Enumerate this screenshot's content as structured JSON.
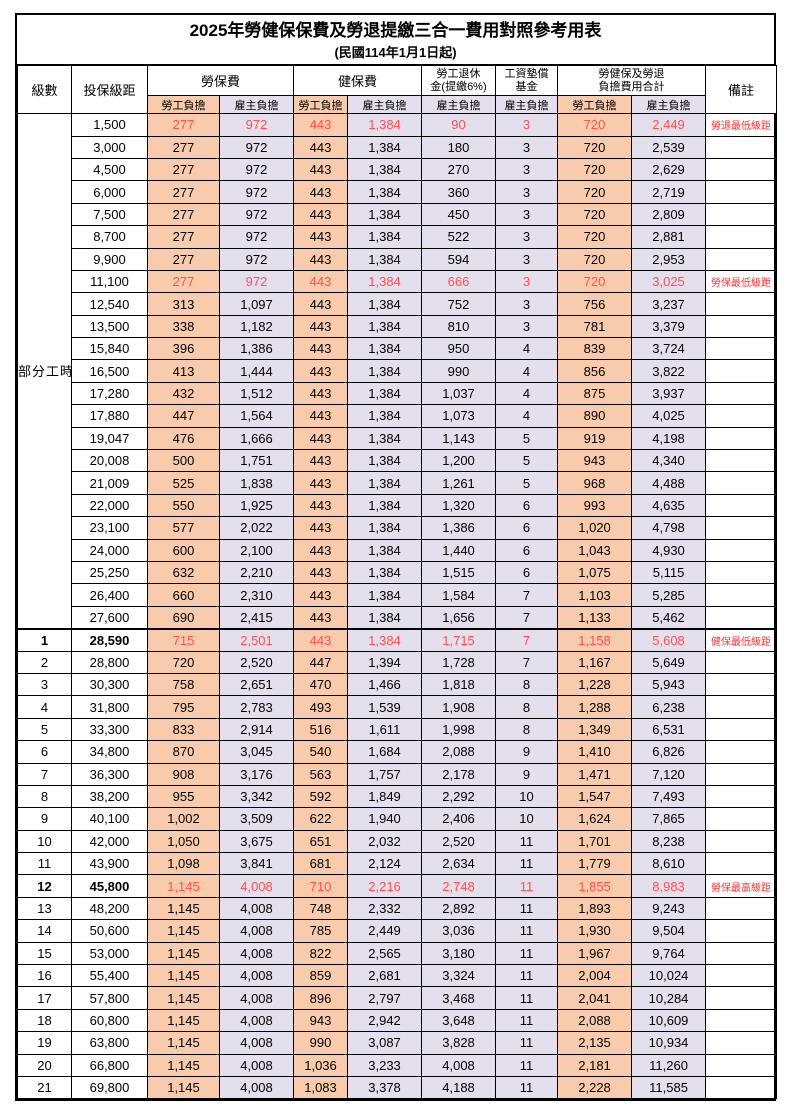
{
  "title": "2025年勞健保保費及勞退提繳三合一費用對照參考用表",
  "subtitle": "(民國114年1月1日起)",
  "header": {
    "level": "級數",
    "bracket": "投保級距",
    "labor_insurance": "勞保費",
    "health_insurance": "健保費",
    "pension_line1": "勞工退休",
    "pension_line2": "金(提繳6%)",
    "wage_fund_line1": "工資墊償",
    "wage_fund_line2": "基金",
    "total_line1": "勞健保及勞退",
    "total_line2": "負擔費用合計",
    "remark": "備註",
    "employee": "勞工負擔",
    "employer": "雇主負擔"
  },
  "colors": {
    "employee_bg": "#F8CBAD",
    "employer_bg": "#E4DFEC",
    "highlight": "#FF5050",
    "remark": "#FF3333"
  },
  "group_label": "部分工時",
  "group_span": 23,
  "rows": [
    {
      "level": "",
      "bracket": "1,500",
      "li_emp": "277",
      "li_er": "972",
      "hi_emp": "443",
      "hi_er": "1,384",
      "pension": "90",
      "wage": "3",
      "tot_emp": "720",
      "tot_er": "2,449",
      "remark": "勞退最低級距",
      "highlight": true
    },
    {
      "level": "",
      "bracket": "3,000",
      "li_emp": "277",
      "li_er": "972",
      "hi_emp": "443",
      "hi_er": "1,384",
      "pension": "180",
      "wage": "3",
      "tot_emp": "720",
      "tot_er": "2,539",
      "remark": ""
    },
    {
      "level": "",
      "bracket": "4,500",
      "li_emp": "277",
      "li_er": "972",
      "hi_emp": "443",
      "hi_er": "1,384",
      "pension": "270",
      "wage": "3",
      "tot_emp": "720",
      "tot_er": "2,629",
      "remark": ""
    },
    {
      "level": "",
      "bracket": "6,000",
      "li_emp": "277",
      "li_er": "972",
      "hi_emp": "443",
      "hi_er": "1,384",
      "pension": "360",
      "wage": "3",
      "tot_emp": "720",
      "tot_er": "2,719",
      "remark": ""
    },
    {
      "level": "",
      "bracket": "7,500",
      "li_emp": "277",
      "li_er": "972",
      "hi_emp": "443",
      "hi_er": "1,384",
      "pension": "450",
      "wage": "3",
      "tot_emp": "720",
      "tot_er": "2,809",
      "remark": ""
    },
    {
      "level": "",
      "bracket": "8,700",
      "li_emp": "277",
      "li_er": "972",
      "hi_emp": "443",
      "hi_er": "1,384",
      "pension": "522",
      "wage": "3",
      "tot_emp": "720",
      "tot_er": "2,881",
      "remark": ""
    },
    {
      "level": "",
      "bracket": "9,900",
      "li_emp": "277",
      "li_er": "972",
      "hi_emp": "443",
      "hi_er": "1,384",
      "pension": "594",
      "wage": "3",
      "tot_emp": "720",
      "tot_er": "2,953",
      "remark": ""
    },
    {
      "level": "",
      "bracket": "11,100",
      "li_emp": "277",
      "li_er": "972",
      "hi_emp": "443",
      "hi_er": "1,384",
      "pension": "666",
      "wage": "3",
      "tot_emp": "720",
      "tot_er": "3,025",
      "remark": "勞保最低級距",
      "highlight": true
    },
    {
      "level": "",
      "bracket": "12,540",
      "li_emp": "313",
      "li_er": "1,097",
      "hi_emp": "443",
      "hi_er": "1,384",
      "pension": "752",
      "wage": "3",
      "tot_emp": "756",
      "tot_er": "3,237",
      "remark": ""
    },
    {
      "level": "",
      "bracket": "13,500",
      "li_emp": "338",
      "li_er": "1,182",
      "hi_emp": "443",
      "hi_er": "1,384",
      "pension": "810",
      "wage": "3",
      "tot_emp": "781",
      "tot_er": "3,379",
      "remark": ""
    },
    {
      "level": "",
      "bracket": "15,840",
      "li_emp": "396",
      "li_er": "1,386",
      "hi_emp": "443",
      "hi_er": "1,384",
      "pension": "950",
      "wage": "4",
      "tot_emp": "839",
      "tot_er": "3,724",
      "remark": ""
    },
    {
      "level": "",
      "bracket": "16,500",
      "li_emp": "413",
      "li_er": "1,444",
      "hi_emp": "443",
      "hi_er": "1,384",
      "pension": "990",
      "wage": "4",
      "tot_emp": "856",
      "tot_er": "3,822",
      "remark": ""
    },
    {
      "level": "",
      "bracket": "17,280",
      "li_emp": "432",
      "li_er": "1,512",
      "hi_emp": "443",
      "hi_er": "1,384",
      "pension": "1,037",
      "wage": "4",
      "tot_emp": "875",
      "tot_er": "3,937",
      "remark": ""
    },
    {
      "level": "",
      "bracket": "17,880",
      "li_emp": "447",
      "li_er": "1,564",
      "hi_emp": "443",
      "hi_er": "1,384",
      "pension": "1,073",
      "wage": "4",
      "tot_emp": "890",
      "tot_er": "4,025",
      "remark": ""
    },
    {
      "level": "",
      "bracket": "19,047",
      "li_emp": "476",
      "li_er": "1,666",
      "hi_emp": "443",
      "hi_er": "1,384",
      "pension": "1,143",
      "wage": "5",
      "tot_emp": "919",
      "tot_er": "4,198",
      "remark": ""
    },
    {
      "level": "",
      "bracket": "20,008",
      "li_emp": "500",
      "li_er": "1,751",
      "hi_emp": "443",
      "hi_er": "1,384",
      "pension": "1,200",
      "wage": "5",
      "tot_emp": "943",
      "tot_er": "4,340",
      "remark": ""
    },
    {
      "level": "",
      "bracket": "21,009",
      "li_emp": "525",
      "li_er": "1,838",
      "hi_emp": "443",
      "hi_er": "1,384",
      "pension": "1,261",
      "wage": "5",
      "tot_emp": "968",
      "tot_er": "4,488",
      "remark": ""
    },
    {
      "level": "",
      "bracket": "22,000",
      "li_emp": "550",
      "li_er": "1,925",
      "hi_emp": "443",
      "hi_er": "1,384",
      "pension": "1,320",
      "wage": "6",
      "tot_emp": "993",
      "tot_er": "4,635",
      "remark": ""
    },
    {
      "level": "",
      "bracket": "23,100",
      "li_emp": "577",
      "li_er": "2,022",
      "hi_emp": "443",
      "hi_er": "1,384",
      "pension": "1,386",
      "wage": "6",
      "tot_emp": "1,020",
      "tot_er": "4,798",
      "remark": ""
    },
    {
      "level": "",
      "bracket": "24,000",
      "li_emp": "600",
      "li_er": "2,100",
      "hi_emp": "443",
      "hi_er": "1,384",
      "pension": "1,440",
      "wage": "6",
      "tot_emp": "1,043",
      "tot_er": "4,930",
      "remark": ""
    },
    {
      "level": "",
      "bracket": "25,250",
      "li_emp": "632",
      "li_er": "2,210",
      "hi_emp": "443",
      "hi_er": "1,384",
      "pension": "1,515",
      "wage": "6",
      "tot_emp": "1,075",
      "tot_er": "5,115",
      "remark": ""
    },
    {
      "level": "",
      "bracket": "26,400",
      "li_emp": "660",
      "li_er": "2,310",
      "hi_emp": "443",
      "hi_er": "1,384",
      "pension": "1,584",
      "wage": "7",
      "tot_emp": "1,103",
      "tot_er": "5,285",
      "remark": ""
    },
    {
      "level": "",
      "bracket": "27,600",
      "li_emp": "690",
      "li_er": "2,415",
      "hi_emp": "443",
      "hi_er": "1,384",
      "pension": "1,656",
      "wage": "7",
      "tot_emp": "1,133",
      "tot_er": "5,462",
      "remark": ""
    },
    {
      "level": "1",
      "bracket": "28,590",
      "li_emp": "715",
      "li_er": "2,501",
      "hi_emp": "443",
      "hi_er": "1,384",
      "pension": "1,715",
      "wage": "7",
      "tot_emp": "1,158",
      "tot_er": "5,608",
      "remark": "健保最低級距",
      "highlight": true,
      "bold": true,
      "thick_top": true
    },
    {
      "level": "2",
      "bracket": "28,800",
      "li_emp": "720",
      "li_er": "2,520",
      "hi_emp": "447",
      "hi_er": "1,394",
      "pension": "1,728",
      "wage": "7",
      "tot_emp": "1,167",
      "tot_er": "5,649",
      "remark": ""
    },
    {
      "level": "3",
      "bracket": "30,300",
      "li_emp": "758",
      "li_er": "2,651",
      "hi_emp": "470",
      "hi_er": "1,466",
      "pension": "1,818",
      "wage": "8",
      "tot_emp": "1,228",
      "tot_er": "5,943",
      "remark": ""
    },
    {
      "level": "4",
      "bracket": "31,800",
      "li_emp": "795",
      "li_er": "2,783",
      "hi_emp": "493",
      "hi_er": "1,539",
      "pension": "1,908",
      "wage": "8",
      "tot_emp": "1,288",
      "tot_er": "6,238",
      "remark": ""
    },
    {
      "level": "5",
      "bracket": "33,300",
      "li_emp": "833",
      "li_er": "2,914",
      "hi_emp": "516",
      "hi_er": "1,611",
      "pension": "1,998",
      "wage": "8",
      "tot_emp": "1,349",
      "tot_er": "6,531",
      "remark": ""
    },
    {
      "level": "6",
      "bracket": "34,800",
      "li_emp": "870",
      "li_er": "3,045",
      "hi_emp": "540",
      "hi_er": "1,684",
      "pension": "2,088",
      "wage": "9",
      "tot_emp": "1,410",
      "tot_er": "6,826",
      "remark": ""
    },
    {
      "level": "7",
      "bracket": "36,300",
      "li_emp": "908",
      "li_er": "3,176",
      "hi_emp": "563",
      "hi_er": "1,757",
      "pension": "2,178",
      "wage": "9",
      "tot_emp": "1,471",
      "tot_er": "7,120",
      "remark": ""
    },
    {
      "level": "8",
      "bracket": "38,200",
      "li_emp": "955",
      "li_er": "3,342",
      "hi_emp": "592",
      "hi_er": "1,849",
      "pension": "2,292",
      "wage": "10",
      "tot_emp": "1,547",
      "tot_er": "7,493",
      "remark": ""
    },
    {
      "level": "9",
      "bracket": "40,100",
      "li_emp": "1,002",
      "li_er": "3,509",
      "hi_emp": "622",
      "hi_er": "1,940",
      "pension": "2,406",
      "wage": "10",
      "tot_emp": "1,624",
      "tot_er": "7,865",
      "remark": ""
    },
    {
      "level": "10",
      "bracket": "42,000",
      "li_emp": "1,050",
      "li_er": "3,675",
      "hi_emp": "651",
      "hi_er": "2,032",
      "pension": "2,520",
      "wage": "11",
      "tot_emp": "1,701",
      "tot_er": "8,238",
      "remark": ""
    },
    {
      "level": "11",
      "bracket": "43,900",
      "li_emp": "1,098",
      "li_er": "3,841",
      "hi_emp": "681",
      "hi_er": "2,124",
      "pension": "2,634",
      "wage": "11",
      "tot_emp": "1,779",
      "tot_er": "8,610",
      "remark": ""
    },
    {
      "level": "12",
      "bracket": "45,800",
      "li_emp": "1,145",
      "li_er": "4,008",
      "hi_emp": "710",
      "hi_er": "2,216",
      "pension": "2,748",
      "wage": "11",
      "tot_emp": "1,855",
      "tot_er": "8,983",
      "remark": "勞保最高級距",
      "highlight": true,
      "bold": true
    },
    {
      "level": "13",
      "bracket": "48,200",
      "li_emp": "1,145",
      "li_er": "4,008",
      "hi_emp": "748",
      "hi_er": "2,332",
      "pension": "2,892",
      "wage": "11",
      "tot_emp": "1,893",
      "tot_er": "9,243",
      "remark": ""
    },
    {
      "level": "14",
      "bracket": "50,600",
      "li_emp": "1,145",
      "li_er": "4,008",
      "hi_emp": "785",
      "hi_er": "2,449",
      "pension": "3,036",
      "wage": "11",
      "tot_emp": "1,930",
      "tot_er": "9,504",
      "remark": ""
    },
    {
      "level": "15",
      "bracket": "53,000",
      "li_emp": "1,145",
      "li_er": "4,008",
      "hi_emp": "822",
      "hi_er": "2,565",
      "pension": "3,180",
      "wage": "11",
      "tot_emp": "1,967",
      "tot_er": "9,764",
      "remark": ""
    },
    {
      "level": "16",
      "bracket": "55,400",
      "li_emp": "1,145",
      "li_er": "4,008",
      "hi_emp": "859",
      "hi_er": "2,681",
      "pension": "3,324",
      "wage": "11",
      "tot_emp": "2,004",
      "tot_er": "10,024",
      "remark": ""
    },
    {
      "level": "17",
      "bracket": "57,800",
      "li_emp": "1,145",
      "li_er": "4,008",
      "hi_emp": "896",
      "hi_er": "2,797",
      "pension": "3,468",
      "wage": "11",
      "tot_emp": "2,041",
      "tot_er": "10,284",
      "remark": ""
    },
    {
      "level": "18",
      "bracket": "60,800",
      "li_emp": "1,145",
      "li_er": "4,008",
      "hi_emp": "943",
      "hi_er": "2,942",
      "pension": "3,648",
      "wage": "11",
      "tot_emp": "2,088",
      "tot_er": "10,609",
      "remark": ""
    },
    {
      "level": "19",
      "bracket": "63,800",
      "li_emp": "1,145",
      "li_er": "4,008",
      "hi_emp": "990",
      "hi_er": "3,087",
      "pension": "3,828",
      "wage": "11",
      "tot_emp": "2,135",
      "tot_er": "10,934",
      "remark": ""
    },
    {
      "level": "20",
      "bracket": "66,800",
      "li_emp": "1,145",
      "li_er": "4,008",
      "hi_emp": "1,036",
      "hi_er": "3,233",
      "pension": "4,008",
      "wage": "11",
      "tot_emp": "2,181",
      "tot_er": "11,260",
      "remark": ""
    },
    {
      "level": "21",
      "bracket": "69,800",
      "li_emp": "1,145",
      "li_er": "4,008",
      "hi_emp": "1,083",
      "hi_er": "3,378",
      "pension": "4,188",
      "wage": "11",
      "tot_emp": "2,228",
      "tot_er": "11,585",
      "remark": ""
    }
  ]
}
